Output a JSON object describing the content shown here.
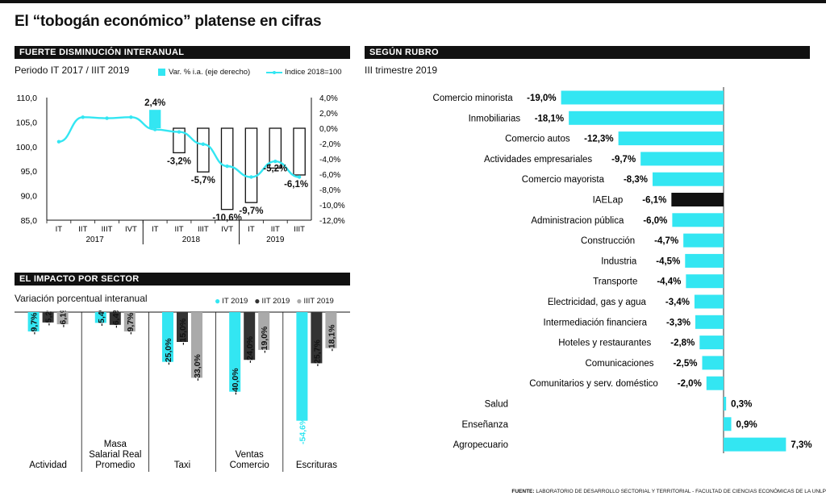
{
  "title": "El “tobogán económico” platense en cifras",
  "footer": {
    "label": "FUENTE:",
    "text": "LABORATORIO DE DESARROLLO SECTORIAL Y TERRITORIAL - FACULTAD DE CIENCIAS ECONÓMICAS DE LA UNLP"
  },
  "colors": {
    "cyan": "#33e6f2",
    "black": "#111111",
    "gray": "#aaaaaa",
    "darkgray": "#333333"
  },
  "chart_data": [
    {
      "id": "interanual",
      "type": "bar",
      "header": "FUERTE DISMINUCIÓN INTERANUAL",
      "subtitle": "Periodo IT 2017 / IIIT 2019",
      "categories": [
        "IT",
        "IIT",
        "IIIT",
        "IVT",
        "IT",
        "IIT",
        "IIIT",
        "IVT",
        "IT",
        "IIT",
        "IIIT"
      ],
      "years": [
        {
          "label": "2017",
          "from": 0,
          "to": 3
        },
        {
          "label": "2018",
          "from": 4,
          "to": 7
        },
        {
          "label": "2019",
          "from": 8,
          "to": 10
        }
      ],
      "series": [
        {
          "name": "Var. % i.a. (eje derecho)",
          "kind": "bar",
          "axis": "right",
          "values": [
            null,
            null,
            null,
            null,
            2.4,
            -3.2,
            -5.7,
            -10.6,
            -9.7,
            -5.2,
            -6.1
          ],
          "labels": [
            "",
            "",
            "",
            "",
            "2,4%",
            "-3,2%",
            "-5,7%",
            "-10,6%",
            "-9,7%",
            "-5,2%",
            "-6,1%"
          ]
        },
        {
          "name": "Indice 2018=100",
          "kind": "line",
          "axis": "left",
          "values": [
            101.0,
            106.0,
            105.8,
            106.0,
            103.5,
            103.0,
            100.5,
            96.0,
            93.8,
            97.0,
            93.8
          ]
        }
      ],
      "ylim_left": [
        85,
        110
      ],
      "yticks_left": [
        "110,0",
        "105,0",
        "100,0",
        "95,0",
        "90,0",
        "85,0"
      ],
      "ylim_right": [
        -12,
        4
      ],
      "yticks_right": [
        "4,0%",
        "2,0%",
        "0,0%",
        "-2,0%",
        "-4,0%",
        "-6,0%",
        "-8,0%",
        "-10,0%",
        "-12,0%"
      ]
    },
    {
      "id": "sector",
      "type": "bar",
      "header": "EL IMPACTO POR SECTOR",
      "subtitle": "Variación porcentual interanual",
      "categories": [
        "Actividad",
        "Masa Salarial Real Promedio",
        "Taxi",
        "Ventas Comercio",
        "Escrituras"
      ],
      "category_lines": [
        [
          "Actividad"
        ],
        [
          "Masa",
          "Salarial Real",
          "Promedio"
        ],
        [
          "Taxi"
        ],
        [
          "Ventas",
          "Comercio"
        ],
        [
          "Escrituras"
        ]
      ],
      "series": [
        {
          "name": "IT 2019",
          "values": [
            -9.7,
            -5.4,
            -25.0,
            -40.0,
            -54.6
          ],
          "labels": [
            "-9,7%",
            "-5,4%",
            "-25,0%",
            "-40,0%",
            "-54,6%"
          ]
        },
        {
          "name": "IIT 2019",
          "values": [
            -5.2,
            -6.4,
            -15.0,
            -24.0,
            -25.7
          ],
          "labels": [
            "-5,2%",
            "-6,4%",
            "-15,0%",
            "-24,0%",
            "-25,7%"
          ]
        },
        {
          "name": "IIIT 2019",
          "values": [
            -6.1,
            -9.7,
            -33.0,
            -19.0,
            -18.1
          ],
          "labels": [
            "-6,1%",
            "-9,7%",
            "-33,0%",
            "-19,0%",
            "-18,1%"
          ]
        }
      ],
      "ylim": [
        -60,
        0
      ]
    },
    {
      "id": "rubro",
      "type": "bar",
      "orientation": "horizontal",
      "header": "SEGÚN RUBRO",
      "subtitle": "III trimestre 2019",
      "categories": [
        "Comercio minorista",
        "Inmobiliarias",
        "Comercio autos",
        "Actividades empresariales",
        "Comercio mayorista",
        "IAELap",
        "Administracion pública",
        "Construcción",
        "Industria",
        "Transporte",
        "Electricidad, gas y agua",
        "Intermediación financiera",
        "Hoteles y restaurantes",
        "Comunicaciones",
        "Comunitarios y serv. doméstico",
        "Salud",
        "Enseñanza",
        "Agropecuario"
      ],
      "values": [
        -19.0,
        -18.1,
        -12.3,
        -9.7,
        -8.3,
        -6.1,
        -6.0,
        -4.7,
        -4.5,
        -4.4,
        -3.4,
        -3.3,
        -2.8,
        -2.5,
        -2.0,
        0.3,
        0.9,
        7.3
      ],
      "labels": [
        "-19,0%",
        "-18,1%",
        "-12,3%",
        "-9,7%",
        "-8,3%",
        "-6,1%",
        "-6,0%",
        "-4,7%",
        "-4,5%",
        "-4,4%",
        "-3,4%",
        "-3,3%",
        "-2,8%",
        "-2,5%",
        "-2,0%",
        "0,3%",
        "0,9%",
        "7,3%"
      ],
      "highlight": "IAELap"
    }
  ]
}
